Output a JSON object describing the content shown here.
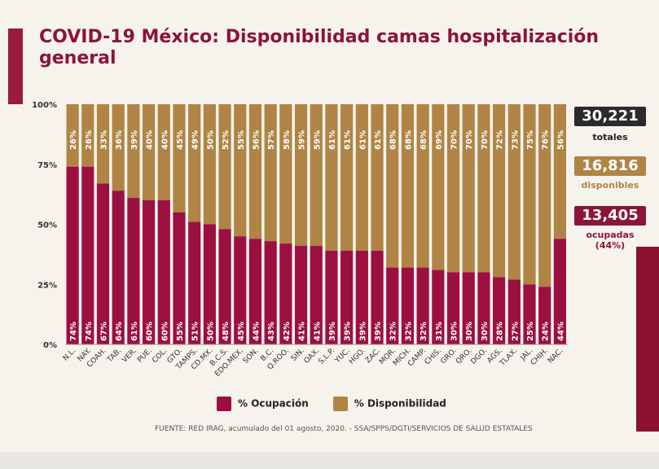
{
  "title": "COVID-19 México: Disponibilidad camas hospitalización general",
  "summary": {
    "total_value": "30,221",
    "total_label": "totales",
    "available_value": "16,816",
    "available_label": "disponibles",
    "occupied_value": "13,405",
    "occupied_label": "ocupadas (44%)"
  },
  "footer": "FUENTE: RED IRAG, acumulado del 01  agosto, 2020. -  SSA/SPPS/DGTI/SERVICIOS DE SALUD ESTATALES",
  "colors": {
    "occupied": "#9b1040",
    "available": "#b08445",
    "dark": "#2b2b2b",
    "accent": "#8a1538"
  },
  "chart_data": {
    "type": "bar",
    "stacked": true,
    "categories": [
      "N.L.",
      "NAY.",
      "COAH.",
      "TAB.",
      "VER.",
      "PUE.",
      "COL.",
      "GTO.",
      "TAMPS.",
      "CD.MX.",
      "B.C.S.",
      "EDO.MEX.",
      "SON.",
      "B.C.",
      "Q.ROO.",
      "SIN.",
      "OAX.",
      "S.L.P.",
      "YUC.",
      "HGO.",
      "ZAC.",
      "MOR.",
      "MICH.",
      "CAMP.",
      "CHIS.",
      "GRO.",
      "QRO.",
      "DGO.",
      "AGS.",
      "TLAX.",
      "JAL.",
      "CHIH.",
      "NAC."
    ],
    "series": [
      {
        "name": "% Ocupación",
        "values": [
          74,
          74,
          67,
          64,
          61,
          60,
          60,
          55,
          51,
          50,
          48,
          45,
          44,
          43,
          42,
          41,
          41,
          39,
          39,
          39,
          39,
          32,
          32,
          32,
          31,
          30,
          30,
          30,
          28,
          27,
          25,
          24,
          44
        ]
      },
      {
        "name": "% Disponibilidad",
        "values": [
          26,
          26,
          33,
          36,
          39,
          40,
          40,
          45,
          49,
          50,
          52,
          55,
          56,
          57,
          58,
          59,
          59,
          61,
          61,
          61,
          61,
          68,
          68,
          68,
          69,
          70,
          70,
          70,
          72,
          73,
          75,
          76,
          56
        ]
      }
    ],
    "yticks": [
      "0%",
      "25%",
      "50%",
      "75%",
      "100%"
    ],
    "ylim": [
      0,
      100
    ],
    "legend": "bottom"
  }
}
